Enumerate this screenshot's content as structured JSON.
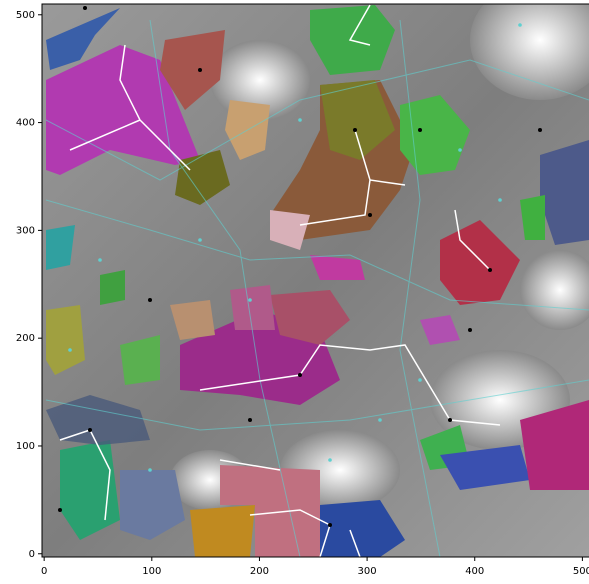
{
  "chart_data": {
    "type": "image",
    "xlim": [
      -2,
      508
    ],
    "ylim": [
      -3,
      510
    ],
    "xticks": [
      0,
      100,
      200,
      300,
      400,
      500
    ],
    "yticks": [
      0,
      100,
      200,
      300,
      400,
      500
    ]
  }
}
